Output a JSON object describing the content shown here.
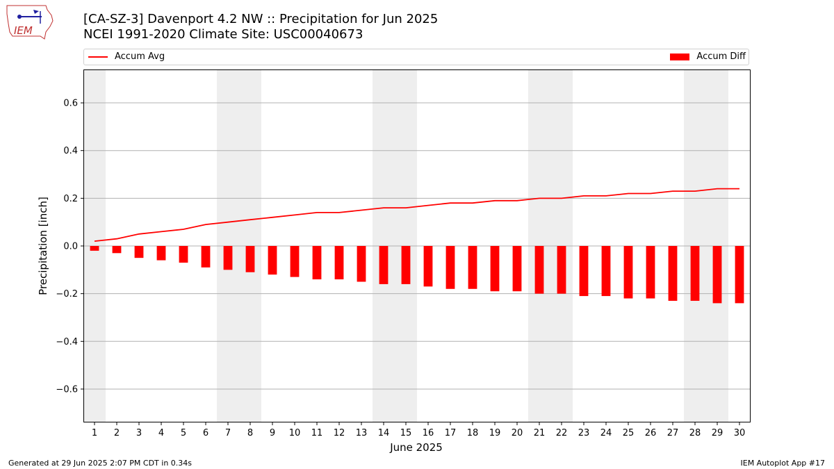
{
  "header": {
    "title_line1": "[CA-SZ-3] Davenport 4.2 NW :: Precipitation for Jun 2025",
    "title_line2": "NCEI 1991-2020 Climate Site: USC00040673",
    "logo_text": "IEM"
  },
  "legend": {
    "avg_label": "Accum Avg",
    "diff_label": "Accum Diff"
  },
  "footer": {
    "left": "Generated at 29 Jun 2025 2:07 PM CDT in 0.34s",
    "right": "IEM Autoplot App #17"
  },
  "colors": {
    "series": "#ff0000",
    "weekend_shade": "#eeeeee",
    "grid": "#b0b0b0"
  },
  "chart_data": {
    "type": "bar",
    "xlabel": "June 2025",
    "ylabel": "Precipitation [inch]",
    "ylim": [
      -0.74,
      0.74
    ],
    "yticks": [
      0.6,
      0.4,
      0.2,
      0.0,
      -0.2,
      -0.4,
      -0.6
    ],
    "ytick_labels": [
      "0.6",
      "0.4",
      "0.2",
      "0.0",
      "−0.2",
      "−0.4",
      "−0.6"
    ],
    "grid": true,
    "legend_placement": "top",
    "categories": [
      "1",
      "2",
      "3",
      "4",
      "5",
      "6",
      "7",
      "8",
      "9",
      "10",
      "11",
      "12",
      "13",
      "14",
      "15",
      "16",
      "17",
      "18",
      "19",
      "20",
      "21",
      "22",
      "23",
      "24",
      "25",
      "26",
      "27",
      "28",
      "29",
      "30"
    ],
    "shaded_days": [
      1,
      7,
      8,
      14,
      15,
      21,
      22,
      28,
      29
    ],
    "series": [
      {
        "name": "Accum Avg",
        "type": "line",
        "values": [
          0.02,
          0.03,
          0.05,
          0.06,
          0.07,
          0.09,
          0.1,
          0.11,
          0.12,
          0.13,
          0.14,
          0.14,
          0.15,
          0.16,
          0.16,
          0.17,
          0.18,
          0.18,
          0.19,
          0.19,
          0.2,
          0.2,
          0.21,
          0.21,
          0.22,
          0.22,
          0.23,
          0.23,
          0.24,
          0.24
        ]
      },
      {
        "name": "Accum Diff",
        "type": "bar",
        "values": [
          -0.02,
          -0.03,
          -0.05,
          -0.06,
          -0.07,
          -0.09,
          -0.1,
          -0.11,
          -0.12,
          -0.13,
          -0.14,
          -0.14,
          -0.15,
          -0.16,
          -0.16,
          -0.17,
          -0.18,
          -0.18,
          -0.19,
          -0.19,
          -0.2,
          -0.2,
          -0.21,
          -0.21,
          -0.22,
          -0.22,
          -0.23,
          -0.23,
          -0.24,
          -0.24
        ]
      }
    ]
  }
}
